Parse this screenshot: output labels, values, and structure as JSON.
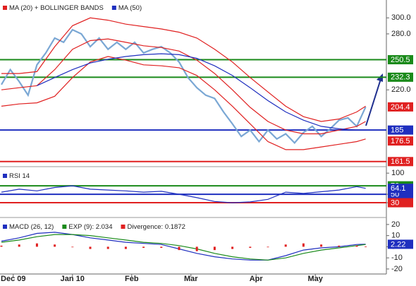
{
  "chart_data": [
    {
      "type": "line",
      "log_scale": true,
      "xlim": [
        0,
        130
      ],
      "ylim": [
        158,
        324
      ],
      "yticks": [
        {
          "value": 300,
          "label": "300.0"
        },
        {
          "value": 280,
          "label": "280.0"
        },
        {
          "value": 220,
          "label": "220.0"
        }
      ],
      "series": [
        {
          "color": "#7aa7d4",
          "width": 2.2,
          "x": [
            0,
            3,
            6,
            9,
            12,
            15,
            18,
            21,
            24,
            27,
            30,
            33,
            36,
            39,
            42,
            45,
            48,
            51,
            54,
            57,
            60,
            63,
            66,
            69,
            72,
            75,
            78,
            81,
            84,
            87,
            90,
            93,
            96,
            99,
            102,
            105,
            108,
            111,
            114,
            117,
            120,
            123
          ],
          "values": [
            225,
            240,
            228,
            215,
            245,
            258,
            275,
            270,
            285,
            280,
            265,
            275,
            262,
            270,
            262,
            270,
            258,
            262,
            265,
            258,
            248,
            232,
            222,
            215,
            212,
            200,
            190,
            180,
            185,
            176,
            185,
            178,
            182,
            175,
            183,
            188,
            180,
            186,
            193,
            195,
            188,
            204.4
          ]
        },
        {
          "color": "#e02020",
          "x": [
            0,
            6,
            12,
            18,
            24,
            30,
            36,
            42,
            48,
            54,
            60,
            66,
            72,
            78,
            84,
            90,
            96,
            102,
            108,
            114,
            120,
            123
          ],
          "values": [
            236,
            236,
            238,
            265,
            290,
            300,
            297,
            292,
            289,
            286,
            282,
            275,
            262,
            248,
            232,
            218,
            205,
            196,
            192,
            194,
            200,
            205
          ]
        },
        {
          "name": "MA (20) + BOLLINGER BANDS",
          "color": "#e02020",
          "x": [
            0,
            6,
            12,
            18,
            24,
            30,
            36,
            42,
            48,
            54,
            60,
            66,
            72,
            78,
            84,
            90,
            96,
            102,
            108,
            114,
            120,
            123
          ],
          "values": [
            220,
            222,
            224,
            240,
            262,
            272,
            274,
            270,
            266,
            264,
            260,
            250,
            236,
            220,
            204,
            192,
            185,
            182,
            182,
            185,
            188,
            192
          ]
        },
        {
          "color": "#e02020",
          "x": [
            0,
            6,
            12,
            18,
            24,
            30,
            36,
            42,
            48,
            54,
            60,
            66,
            72,
            78,
            84,
            90,
            96,
            102,
            108,
            114,
            120,
            123
          ],
          "values": [
            205,
            207,
            208,
            214,
            232,
            248,
            254,
            250,
            245,
            244,
            242,
            234,
            220,
            205,
            190,
            176,
            170,
            170,
            172,
            174,
            176,
            178
          ]
        },
        {
          "name": "MA (50)",
          "color": "#1f2fbf",
          "x": [
            12,
            18,
            24,
            30,
            36,
            42,
            48,
            54,
            60,
            66,
            72,
            78,
            84,
            90,
            96,
            102,
            108,
            114,
            120,
            123
          ],
          "values": [
            224,
            232,
            240,
            247,
            251,
            254,
            256,
            257,
            256,
            252,
            244,
            234,
            222,
            210,
            200,
            193,
            188,
            186,
            185,
            185
          ]
        }
      ],
      "levels": [
        {
          "value": 250.5,
          "color": "#1a8a1a",
          "line": true
        },
        {
          "value": 232.3,
          "color": "#1a8a1a",
          "line": true
        },
        {
          "value": 204.4,
          "color": "#e02020",
          "line": false
        },
        {
          "value": 185,
          "color": "#1f2fbf",
          "line": true
        },
        {
          "value": 176.5,
          "color": "#e02020",
          "line": false
        },
        {
          "value": 161.5,
          "color": "#e02020",
          "line": true
        }
      ]
    },
    {
      "type": "line",
      "xlim": [
        0,
        130
      ],
      "ylim": [
        0,
        112
      ],
      "yticks": [
        100,
        50,
        30
      ],
      "series": [
        {
          "name": "RSI 14",
          "color": "#1f2fbf",
          "x": [
            0,
            6,
            12,
            18,
            24,
            30,
            36,
            42,
            48,
            54,
            60,
            66,
            72,
            78,
            84,
            90,
            96,
            102,
            108,
            114,
            120,
            123
          ],
          "values": [
            55,
            62,
            58,
            66,
            70,
            62,
            60,
            58,
            55,
            57,
            50,
            42,
            33,
            30,
            32,
            38,
            55,
            52,
            56,
            60,
            68,
            64.1
          ]
        }
      ],
      "levels": [
        {
          "value": 70,
          "color": "#1a8a1a",
          "line": true
        },
        {
          "value": 50,
          "color": "#1f2fbf",
          "line": true
        },
        {
          "value": 30,
          "color": "#e02020",
          "line": true
        },
        {
          "value": 64.1,
          "color": "#1f2fbf",
          "line": false
        }
      ]
    },
    {
      "type": "line",
      "xlim": [
        0,
        130
      ],
      "ylim": [
        -24.5,
        25
      ],
      "yticks": [
        20,
        10,
        0,
        -10,
        -20
      ],
      "xticks": [
        {
          "value": 4,
          "label": "Dec 09"
        },
        {
          "value": 24,
          "label": "Jan 10"
        },
        {
          "value": 44,
          "label": "Feb"
        },
        {
          "value": 64,
          "label": "Mar"
        },
        {
          "value": 86,
          "label": "Apr"
        },
        {
          "value": 106,
          "label": "May"
        }
      ],
      "series": [
        {
          "name": "MACD (26, 12)",
          "color": "#1f2fbf",
          "x": [
            0,
            6,
            12,
            18,
            24,
            30,
            36,
            42,
            48,
            54,
            60,
            66,
            72,
            78,
            84,
            90,
            96,
            102,
            108,
            114,
            120,
            123
          ],
          "values": [
            5,
            8,
            12,
            13,
            11,
            8,
            6,
            4,
            3,
            2,
            -2,
            -6,
            -9,
            -11,
            -12,
            -12,
            -8,
            -3,
            -1,
            0,
            2,
            2.22
          ]
        },
        {
          "name": "EXP (9): 2.034",
          "color": "#1a8a1a",
          "x": [
            0,
            6,
            12,
            18,
            24,
            30,
            36,
            42,
            48,
            54,
            60,
            66,
            72,
            78,
            84,
            90,
            96,
            102,
            108,
            114,
            120,
            123
          ],
          "values": [
            4,
            6,
            9,
            11,
            11,
            10,
            8,
            6,
            4,
            3,
            1,
            -2,
            -6,
            -9,
            -11,
            -12,
            -10,
            -6,
            -3,
            -1,
            1,
            2.034
          ]
        },
        {
          "name": "Divergence: 0.1872",
          "color": "#e02020",
          "type": "bar",
          "x": [
            0,
            6,
            12,
            18,
            24,
            30,
            36,
            42,
            48,
            54,
            60,
            66,
            72,
            78,
            84,
            90,
            96,
            102,
            108,
            114,
            120,
            123
          ],
          "values": [
            1,
            2,
            3,
            2,
            0,
            -2,
            -2,
            -2,
            -1,
            -1,
            -3,
            -4,
            -3,
            -2,
            -1,
            0,
            2,
            3,
            2,
            1,
            1,
            0.1872
          ]
        }
      ],
      "levels": [
        {
          "value": 2.22,
          "color": "#1f2fbf",
          "line": false
        }
      ]
    }
  ]
}
